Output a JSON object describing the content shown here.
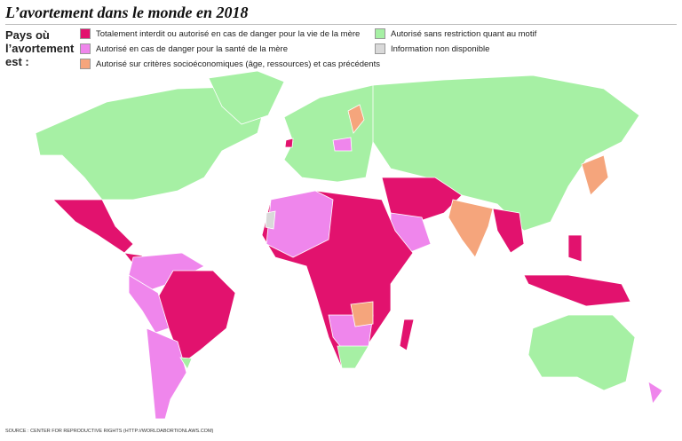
{
  "header": {
    "title": "L’avortement dans le monde en 2018"
  },
  "legend": {
    "label": "Pays où l’avortement est :",
    "items": [
      {
        "label": "Totalement interdit ou autorisé en cas de danger pour la vie de la mère",
        "color": "#e2126e"
      },
      {
        "label": "Autorisé en cas de danger pour la santé de la mère",
        "color": "#ef86ec"
      },
      {
        "label": "Autorisé sur critères socioéconomiques (âge, ressources) et cas précédents",
        "color": "#f5a57c"
      },
      {
        "label": "Autorisé sans restriction quant au motif",
        "color": "#a6f0a4"
      },
      {
        "label": "Information non disponible",
        "color": "#d9d9d9"
      }
    ]
  },
  "source": "SOURCE : CENTER FOR REPRODUCTIVE RIGHTS (HTTP://WORLDABORTIONLAWS.COM)"
}
